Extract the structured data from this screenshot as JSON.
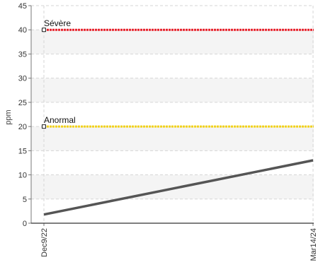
{
  "chart_data": {
    "type": "line",
    "ylabel": "ppm",
    "xlabel": "",
    "ylim": [
      0,
      45
    ],
    "yticks": [
      0,
      5,
      10,
      15,
      20,
      25,
      30,
      35,
      40,
      45
    ],
    "x_tick_labels": [
      "Dec9/22",
      "Mar14/24"
    ],
    "grid": true,
    "alternating_bands": true,
    "series": [
      {
        "x": [
          "Dec9/22",
          "Mar14/24"
        ],
        "values": [
          1.8,
          13
        ],
        "color": "#555555"
      }
    ],
    "thresholds": [
      {
        "label": "Sévère",
        "value": 40,
        "color": "#e8202a"
      },
      {
        "label": "Anormal",
        "value": 20,
        "color": "#f2d21a"
      }
    ]
  }
}
